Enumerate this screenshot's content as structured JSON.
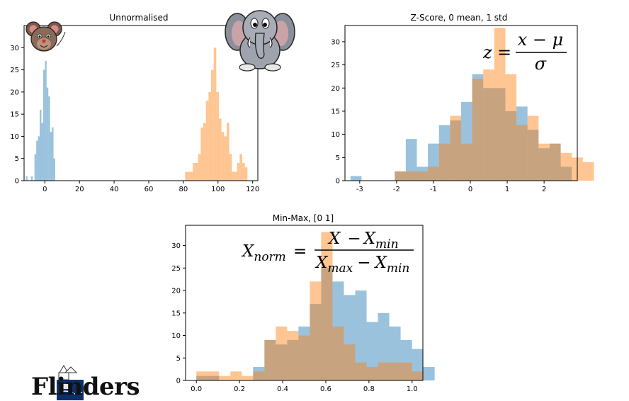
{
  "colors": {
    "blue": "#1f77b4",
    "orange": "#ff7f0e",
    "bar_alpha": 0.45
  },
  "branding": {
    "name": "Flinders",
    "logo_icon": "flinders-crest-icon"
  },
  "mascots": {
    "mouse": "mouse-icon",
    "elephant": "elephant-icon"
  },
  "chart_data": [
    {
      "type": "histogram",
      "title": "Unnormalised",
      "xlabel": "",
      "ylabel": "",
      "xlim": [
        -12,
        123
      ],
      "ylim": [
        0,
        35
      ],
      "xticks": [
        0,
        20,
        40,
        60,
        80,
        100,
        120
      ],
      "yticks": [
        0,
        5,
        10,
        15,
        20,
        25,
        30
      ],
      "series": [
        {
          "bin_start": -11,
          "bin_width": 1,
          "values": [
            1,
            0,
            0,
            1,
            0,
            6,
            9,
            10,
            16,
            13,
            25,
            27,
            21,
            19,
            11,
            12,
            5
          ]
        },
        {
          "bin_start": 81,
          "bin_width": 1.5,
          "values": [
            2,
            2,
            2,
            4,
            4,
            6,
            12,
            13,
            18,
            20,
            25,
            30,
            20,
            14,
            11,
            10,
            13,
            6,
            2,
            2,
            4,
            6,
            4,
            3,
            0
          ]
        }
      ],
      "annotation": ""
    },
    {
      "type": "histogram",
      "title": "Z-Score, 0 mean, 1 std",
      "xlabel": "",
      "ylabel": "",
      "xlim": [
        -3.4,
        2.9
      ],
      "ylim": [
        0,
        33.5
      ],
      "xticks": [
        -3,
        -2,
        -1,
        0,
        1,
        2
      ],
      "yticks": [
        0,
        5,
        10,
        15,
        20,
        25,
        30
      ],
      "series": [
        {
          "bin_start": -3.25,
          "bin_width": 0.3,
          "values": [
            1,
            0,
            0,
            0,
            2,
            9,
            3,
            8,
            12,
            13,
            17,
            23,
            20,
            20,
            15,
            16,
            11,
            7,
            8,
            3,
            0
          ]
        },
        {
          "bin_start": -3.25,
          "bin_width": 0.3,
          "values": [
            0,
            0,
            0,
            0,
            2,
            2,
            2,
            3,
            8,
            14,
            8,
            22,
            24,
            33,
            23,
            12,
            14,
            8,
            8,
            6,
            5,
            4
          ]
        }
      ],
      "annotation": "z = (x − μ) / σ",
      "formula": {
        "lhs": "z",
        "eq": "=",
        "numerator": "x  −  μ",
        "denominator": "σ"
      }
    },
    {
      "type": "histogram",
      "title": "Min-Max, [0 1]",
      "xlabel": "",
      "ylabel": "",
      "xlim": [
        -0.05,
        1.05
      ],
      "ylim": [
        0,
        34.5
      ],
      "xticks": [
        0.0,
        0.2,
        0.4,
        0.6,
        0.8,
        1.0
      ],
      "xtick_labels": [
        "0.0",
        "0.2",
        "0.4",
        "0.6",
        "0.8",
        "1.0"
      ],
      "yticks": [
        0,
        5,
        10,
        15,
        20,
        25,
        30
      ],
      "series": [
        {
          "bin_start": 0,
          "bin_width": 0.0526,
          "values": [
            1,
            1,
            0,
            0,
            0,
            3,
            9,
            8,
            9,
            12,
            17,
            25,
            22,
            19,
            20,
            13,
            15,
            12,
            9,
            7,
            3
          ]
        },
        {
          "bin_start": 0,
          "bin_width": 0.0526,
          "values": [
            2,
            2,
            1,
            2,
            1,
            2,
            9,
            12,
            11,
            10,
            22,
            33,
            12,
            8,
            4,
            3,
            4,
            4,
            4,
            2,
            0
          ]
        }
      ],
      "annotation": "X_norm = (X − X_min) / (X_max − X_min)",
      "formula": {
        "lhs": "X",
        "lhs_sub": "norm",
        "eq": "=",
        "num_a": "X",
        "num_minus": "−",
        "num_b": "X",
        "num_b_sub": "min",
        "den_a": "X",
        "den_a_sub": "max",
        "den_minus": "−",
        "den_b": "X",
        "den_b_sub": "min"
      }
    }
  ]
}
